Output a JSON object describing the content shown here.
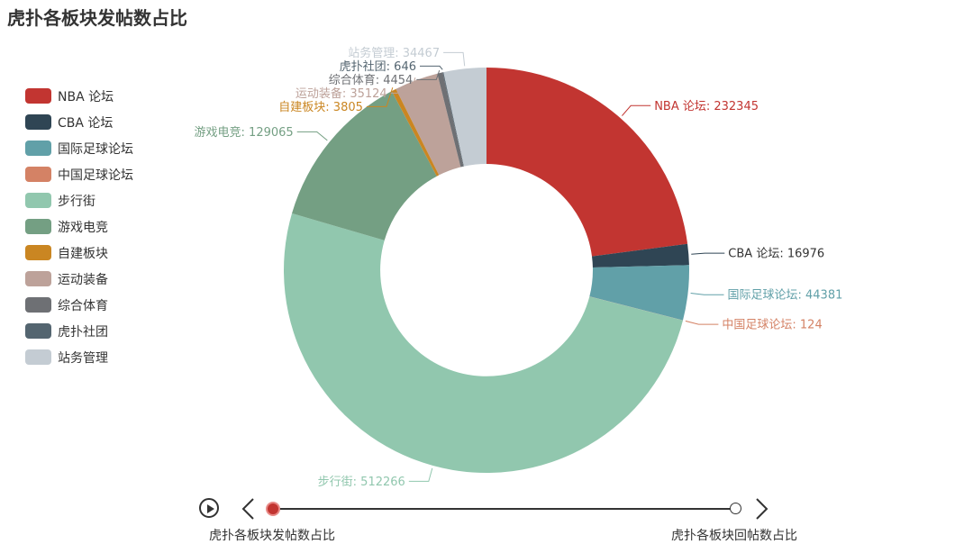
{
  "page": {
    "title": "虎扑各板块发帖数占比"
  },
  "chart_data": {
    "type": "pie",
    "title": "虎扑各板块发帖数占比",
    "donut": true,
    "slices": [
      {
        "name": "NBA 论坛",
        "value": 232345,
        "color": "#c23531"
      },
      {
        "name": "CBA 论坛",
        "value": 16976,
        "color": "#2f4554"
      },
      {
        "name": "国际足球论坛",
        "value": 44381,
        "color": "#61a0a8"
      },
      {
        "name": "中国足球论坛",
        "value": 124,
        "color": "#d48265"
      },
      {
        "name": "步行街",
        "value": 512266,
        "color": "#91c7ae"
      },
      {
        "name": "游戏电竞",
        "value": 129065,
        "color": "#749f83"
      },
      {
        "name": "自建板块",
        "value": 3805,
        "color": "#ca8622"
      },
      {
        "name": "运动装备",
        "value": 35124,
        "color": "#bda29a"
      },
      {
        "name": "综合体育",
        "value": 4454,
        "color": "#6e7074"
      },
      {
        "name": "虎扑社团",
        "value": 646,
        "color": "#546570"
      },
      {
        "name": "站务管理",
        "value": 34467,
        "color": "#c4ccd3"
      }
    ],
    "legend_position": "left",
    "slice_labels": "outside"
  },
  "timeline": {
    "items": [
      "虎扑各板块发帖数占比",
      "虎扑各板块回帖数占比"
    ],
    "active_index": 0
  }
}
